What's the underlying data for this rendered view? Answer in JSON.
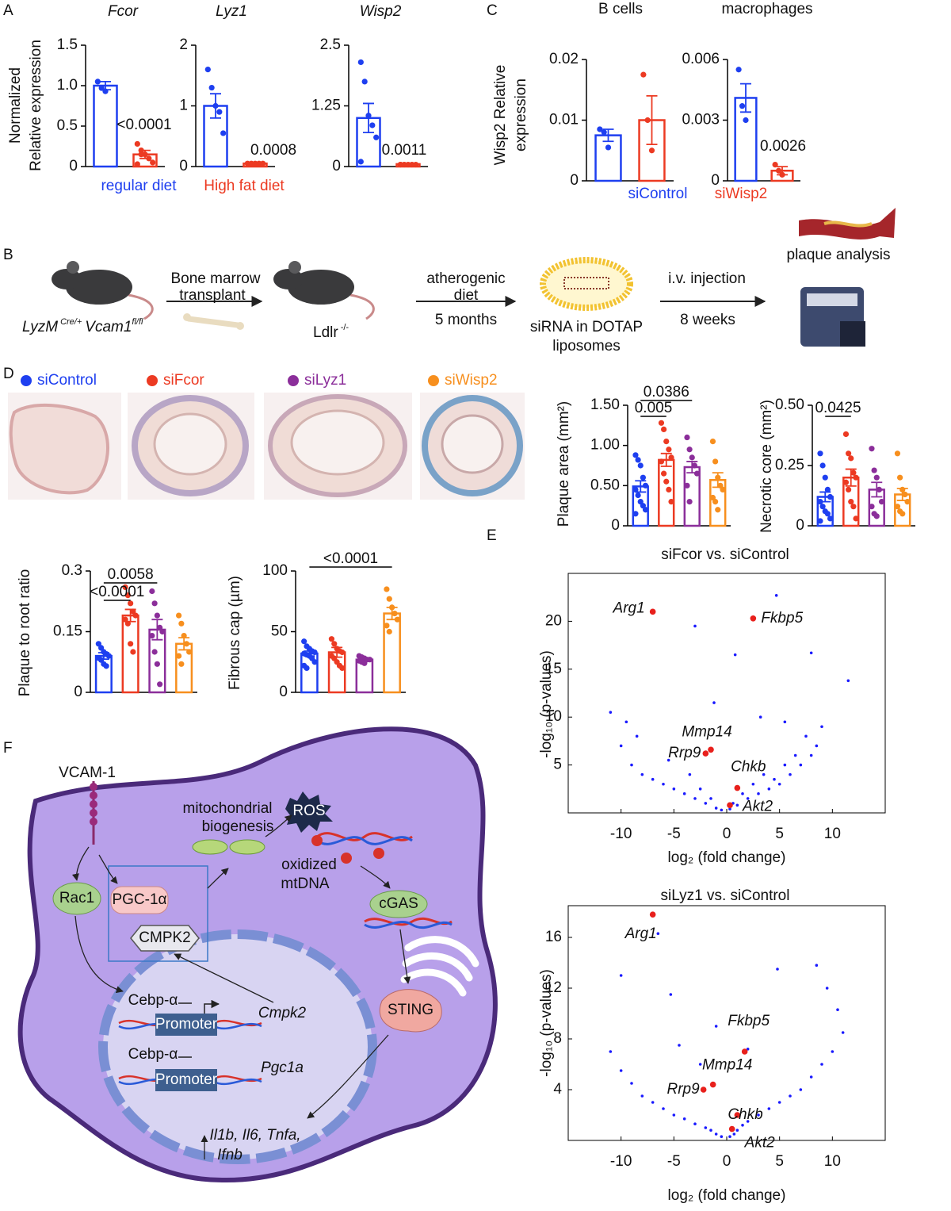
{
  "panel_labels": [
    "A",
    "B",
    "C",
    "D",
    "E",
    "F"
  ],
  "groups_a": [
    {
      "name": "regular diet",
      "color": "#1e3ff0"
    },
    {
      "name": "High fat diet",
      "color": "#ec3a22"
    }
  ],
  "groups_c": [
    {
      "name": "siControl",
      "color": "#1e3ff0"
    },
    {
      "name": "siWisp2",
      "color": "#ec3a22"
    }
  ],
  "groups_d": [
    {
      "name": "siControl",
      "color": "#1e3ff0"
    },
    {
      "name": "siFcor",
      "color": "#ec3a22"
    },
    {
      "name": "siLyz1",
      "color": "#8b2e9a"
    },
    {
      "name": "siWisp2",
      "color": "#f78f1e"
    }
  ],
  "chart_data": [
    {
      "type": "bar",
      "title": "Fcor",
      "ylabel": [
        "Normalized",
        "Relative expression"
      ],
      "ylim": [
        0,
        1.5
      ],
      "yticks": [
        0,
        0.5,
        {
          "value": 1,
          "label": "1.0"
        },
        1.5
      ],
      "values": [
        1.0,
        0.15
      ],
      "errors": [
        0.05,
        0.05
      ],
      "points": [
        [
          1.05,
          0.97,
          0.93
        ],
        [
          0.28,
          0.2,
          0.15,
          0.1,
          0.05,
          0.03,
          0.15
        ]
      ],
      "annotation": "<0.0001"
    },
    {
      "type": "bar",
      "title": "Lyz1",
      "ylim": [
        0,
        2
      ],
      "yticks": [
        0,
        1,
        2
      ],
      "values": [
        1.0,
        0.05
      ],
      "errors": [
        0.2,
        0.01
      ],
      "points": [
        [
          1.6,
          1.3,
          1.0,
          0.9,
          0.55
        ],
        [
          0.05,
          0.05,
          0.05,
          0.05,
          0.05
        ]
      ],
      "annotation": "0.0008"
    },
    {
      "type": "bar",
      "title": "Wisp2",
      "ylim": [
        0,
        2.5
      ],
      "yticks": [
        0,
        1.25,
        2.5
      ],
      "values": [
        1.0,
        0.05
      ],
      "errors": [
        0.3,
        0.01
      ],
      "points": [
        [
          2.15,
          1.75,
          1.05,
          0.85,
          0.6,
          0.1
        ],
        [
          0.04,
          0.04,
          0.04,
          0.04,
          0.04,
          0.04
        ]
      ],
      "annotation": "0.0011"
    },
    {
      "type": "bar",
      "title": "B cells",
      "ylabel": [
        "Wisp2 Relative",
        "expression"
      ],
      "ylim": [
        0,
        0.02
      ],
      "yticks": [
        0,
        0.01,
        0.02
      ],
      "values": [
        0.0075,
        0.01
      ],
      "errors": [
        0.001,
        0.004
      ],
      "points": [
        [
          0.0085,
          0.008,
          0.0055
        ],
        [
          0.0175,
          0.01,
          0.005
        ]
      ]
    },
    {
      "type": "bar",
      "title": "macrophages",
      "ylim": [
        0,
        0.006
      ],
      "yticks": [
        0,
        0.003,
        0.006
      ],
      "values": [
        0.0041,
        0.0005
      ],
      "errors": [
        0.0007,
        0.0002
      ],
      "points": [
        [
          0.0055,
          0.0037,
          0.003
        ],
        [
          0.0008,
          0.0005,
          0.0003
        ]
      ],
      "annotation": "0.0026"
    },
    {
      "type": "bar",
      "ylabel": [
        "Plaque area (mm²)"
      ],
      "ylim": [
        0,
        1.5
      ],
      "yticks": [
        0,
        {
          "value": 0.5,
          "label": "0.50"
        },
        {
          "value": 1,
          "label": "1.00"
        },
        {
          "value": 1.5,
          "label": "1.50"
        }
      ],
      "values": [
        0.49,
        0.82,
        0.73,
        0.57
      ],
      "errors": [
        0.07,
        0.08,
        0.07,
        0.09
      ],
      "points": [
        [
          0.88,
          0.82,
          0.75,
          0.6,
          0.5,
          0.45,
          0.38,
          0.3,
          0.25,
          0.2,
          0.15
        ],
        [
          1.28,
          1.2,
          1.05,
          0.95,
          0.85,
          0.8,
          0.65,
          0.55,
          0.45,
          0.3
        ],
        [
          1.1,
          0.95,
          0.85,
          0.75,
          0.65,
          0.5,
          0.3
        ],
        [
          1.05,
          0.8,
          0.6,
          0.5,
          0.45,
          0.35,
          0.3,
          0.2
        ]
      ],
      "brackets": [
        {
          "label": "0.005",
          "from": 0,
          "to": 1
        },
        {
          "label": "0.0386",
          "from": 0,
          "to": 2
        }
      ]
    },
    {
      "type": "bar",
      "ylabel": [
        "Necrotic core (mm²)"
      ],
      "ylim": [
        0,
        0.5
      ],
      "yticks": [
        0,
        0.25,
        {
          "value": 0.5,
          "label": "0.50"
        }
      ],
      "values": [
        0.12,
        0.2,
        0.15,
        0.13
      ],
      "errors": [
        0.02,
        0.035,
        0.03,
        0.025
      ],
      "points": [
        [
          0.3,
          0.25,
          0.2,
          0.15,
          0.12,
          0.1,
          0.08,
          0.06,
          0.05,
          0.03,
          0.02
        ],
        [
          0.38,
          0.3,
          0.28,
          0.22,
          0.2,
          0.18,
          0.15,
          0.1,
          0.08,
          0.03
        ],
        [
          0.32,
          0.23,
          0.2,
          0.15,
          0.1,
          0.08,
          0.05,
          0.04
        ],
        [
          0.3,
          0.2,
          0.15,
          0.13,
          0.1,
          0.08,
          0.06,
          0.05
        ]
      ],
      "brackets": [
        {
          "label": "0.0425",
          "from": 0,
          "to": 1
        }
      ]
    },
    {
      "type": "bar",
      "ylabel": [
        "Plaque to root ratio"
      ],
      "ylim": [
        0,
        0.3
      ],
      "yticks": [
        0,
        0.15,
        0.3
      ],
      "values": [
        0.09,
        0.19,
        0.155,
        0.12
      ],
      "errors": [
        0.008,
        0.015,
        0.025,
        0.015
      ],
      "points": [
        [
          0.12,
          0.11,
          0.1,
          0.095,
          0.09,
          0.085,
          0.08,
          0.07,
          0.065
        ],
        [
          0.26,
          0.24,
          0.22,
          0.2,
          0.19,
          0.18,
          0.17,
          0.12,
          0.1
        ],
        [
          0.25,
          0.22,
          0.19,
          0.16,
          0.15,
          0.14,
          0.1,
          0.07,
          0.02
        ],
        [
          0.19,
          0.17,
          0.14,
          0.12,
          0.1,
          0.09,
          0.07
        ]
      ],
      "brackets": [
        {
          "label": "0.0058",
          "from": 0,
          "to": 2
        },
        {
          "label": "<0.0001",
          "from": 0,
          "to": 1
        }
      ]
    },
    {
      "type": "bar",
      "ylabel": [
        "Fibrous cap (µm)"
      ],
      "ylim": [
        0,
        100
      ],
      "yticks": [
        0,
        50,
        100
      ],
      "values": [
        32,
        33,
        27,
        65
      ],
      "errors": [
        2,
        4,
        1,
        5
      ],
      "points": [
        [
          42,
          38,
          36,
          34,
          33,
          32,
          31,
          30,
          28,
          25,
          22,
          20
        ],
        [
          44,
          40,
          36,
          34,
          33,
          30,
          28,
          25,
          22,
          20
        ],
        [
          30,
          29,
          28,
          27,
          27,
          26,
          25,
          24
        ],
        [
          85,
          77,
          70,
          65,
          60,
          55,
          50
        ]
      ],
      "brackets": [
        {
          "label": "<0.0001",
          "from": 0,
          "to": 3
        }
      ]
    },
    {
      "type": "scatter",
      "title": "siFcor vs. siControl",
      "xlabel": "log₂ (fold change)",
      "ylabel": "-log₁₀ (p-values)",
      "xlim": [
        -15,
        15
      ],
      "ylim": [
        0,
        25
      ],
      "xticks": [
        -10,
        -5,
        0,
        5,
        10
      ],
      "yticks": [
        5,
        10,
        15,
        20
      ],
      "color": "#1a1aff",
      "highlight_color": "#e8201c",
      "x": [
        -11,
        -10,
        -9,
        -8.5,
        -8,
        -7,
        -6,
        -5.5,
        -5,
        -4,
        -3.5,
        -3,
        -2.5,
        -2,
        -1.5,
        -1,
        -0.5,
        0.3,
        0.6,
        1,
        1.5,
        2,
        2.5,
        3,
        3.5,
        4,
        4.5,
        5,
        5.5,
        6,
        6.5,
        7,
        7.5,
        8,
        8.5,
        9,
        -9.5,
        -3,
        0.8,
        4.7,
        5.5,
        8,
        11.5,
        -1.2,
        3.2
      ],
      "y": [
        10.5,
        7,
        5,
        8,
        4,
        3.5,
        3,
        5.5,
        2.5,
        2,
        4,
        1.5,
        2.5,
        1,
        1.5,
        0.5,
        0.3,
        0.4,
        1,
        0.8,
        2,
        1.5,
        3,
        2,
        4,
        2.5,
        3.5,
        3,
        5,
        4,
        6,
        5,
        8,
        6,
        7,
        9,
        9.5,
        19.5,
        16.5,
        22.7,
        9.5,
        16.7,
        13.8,
        11.5,
        10
      ],
      "highlights": [
        {
          "label": "Arg1",
          "x": -7,
          "y": 21
        },
        {
          "label": "Fkbp5",
          "x": 2.5,
          "y": 20.3
        },
        {
          "label": "Mmp14",
          "x": -1.5,
          "y": 6.6
        },
        {
          "label": "Rrp9",
          "x": -2,
          "y": 6.2
        },
        {
          "label": "Chkb",
          "x": 1,
          "y": 2.6
        },
        {
          "label": "Akt2",
          "x": 0.3,
          "y": 0.8
        }
      ]
    },
    {
      "type": "scatter",
      "title": "siLyz1 vs. siControl",
      "xlabel": "log₂ (fold change)",
      "ylabel": "-log₁₀ (p-values)",
      "xlim": [
        -15,
        15
      ],
      "ylim": [
        0,
        18.5
      ],
      "xticks": [
        -10,
        -5,
        0,
        5,
        10
      ],
      "yticks": [
        4,
        8,
        12,
        16
      ],
      "color": "#1a1aff",
      "highlight_color": "#e8201c",
      "x": [
        -11,
        -10,
        -9,
        -8,
        -7,
        -6,
        -5,
        -4,
        -3,
        -2,
        -1.5,
        -1,
        -0.5,
        0.3,
        0.7,
        1,
        1.5,
        2,
        3,
        4,
        5,
        6,
        7,
        8,
        9,
        10,
        11,
        -10,
        -6.5,
        -4.5,
        -2.5,
        -1,
        2,
        4.8,
        8.5,
        9.5,
        -5.3,
        10.5
      ],
      "y": [
        7,
        5.5,
        4.5,
        3.5,
        3,
        2.5,
        2,
        1.7,
        1.3,
        1,
        0.8,
        0.5,
        0.3,
        0.3,
        0.5,
        0.8,
        1.2,
        1.5,
        2,
        2.5,
        3,
        3.5,
        4,
        5,
        6,
        7,
        8.5,
        13,
        16.3,
        7.5,
        6,
        9,
        7.2,
        13.5,
        13.8,
        12,
        11.5,
        10.3
      ],
      "highlights": [
        {
          "label": "Arg1",
          "x": -7,
          "y": 17.8
        },
        {
          "label": "Fkbp5",
          "x": 1.7,
          "y": 7
        },
        {
          "label": "Mmp14",
          "x": -1.3,
          "y": 4.4
        },
        {
          "label": "Rrp9",
          "x": -2.2,
          "y": 4
        },
        {
          "label": "Chkb",
          "x": 1,
          "y": 2
        },
        {
          "label": "Akt2",
          "x": 0.5,
          "y": 0.9
        }
      ]
    }
  ],
  "workflow": {
    "donor": [
      "LyzM",
      "Cre/+",
      "Vcam1",
      "fl/fl"
    ],
    "transplant": [
      "Bone marrow",
      "transplant"
    ],
    "recipient": [
      "Ldlr",
      "-/-"
    ],
    "diet": [
      "atherogenic",
      "diet"
    ],
    "diet_duration": "5 months",
    "liposome": [
      "siRNA in DOTAP",
      "liposomes"
    ],
    "injection": "i.v. injection",
    "injection_duration": "8 weeks",
    "analysis": "plaque analysis"
  },
  "pathway": {
    "receptor": "VCAM-1",
    "biogenesis": [
      "mitochondrial",
      "biogenesis"
    ],
    "ros": "ROS",
    "mtdna": [
      "oxidized",
      "mtDNA"
    ],
    "rac1": "Rac1",
    "pgc1a_protein": "PGC-1α",
    "cmpk2_protein": "CMPK2",
    "cgas": "cGAS",
    "sting": "STING",
    "tf": [
      "Cebp-α",
      "Cebp-α"
    ],
    "promoter": [
      "Promoter",
      "Promoter"
    ],
    "genes": [
      "Cmpk2",
      "Pgc1a"
    ],
    "cytokines": [
      "Il1b, Il6, Tnfa,",
      "Ifnb"
    ]
  }
}
